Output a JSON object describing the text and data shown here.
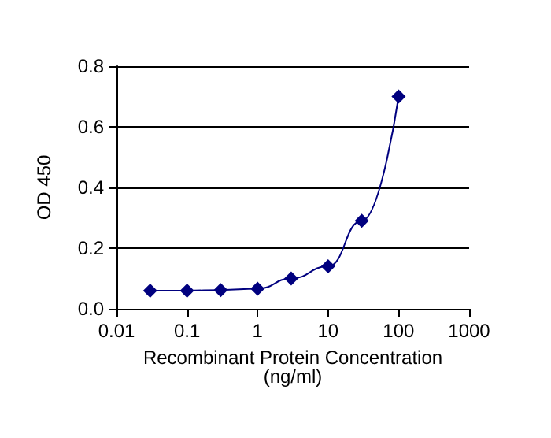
{
  "chart_data": {
    "type": "line",
    "xlabel": "Recombinant Protein Concentration\n(ng/ml)",
    "ylabel": "OD 450",
    "x": [
      0.03,
      0.1,
      0.3,
      1,
      3,
      10,
      30,
      100
    ],
    "series": [
      {
        "color": "#00007f",
        "values": [
          0.06,
          0.06,
          0.062,
          0.066,
          0.1,
          0.14,
          0.29,
          0.7
        ]
      }
    ],
    "log": "x",
    "xlim": [
      0.01,
      1000
    ],
    "xticks": [
      0.01,
      0.1,
      1,
      10,
      100,
      1000
    ],
    "ylim": [
      0,
      0.8
    ],
    "yticks": [
      {
        "value": 0,
        "label": "0.0"
      },
      {
        "value": 0.2,
        "label": "0.2"
      },
      {
        "value": 0.4,
        "label": "0.4"
      },
      {
        "value": 0.6,
        "label": "0.6"
      },
      {
        "value": 0.8,
        "label": "0.8"
      }
    ],
    "grid": "y",
    "marker": "diamond",
    "line_style": "solid"
  }
}
